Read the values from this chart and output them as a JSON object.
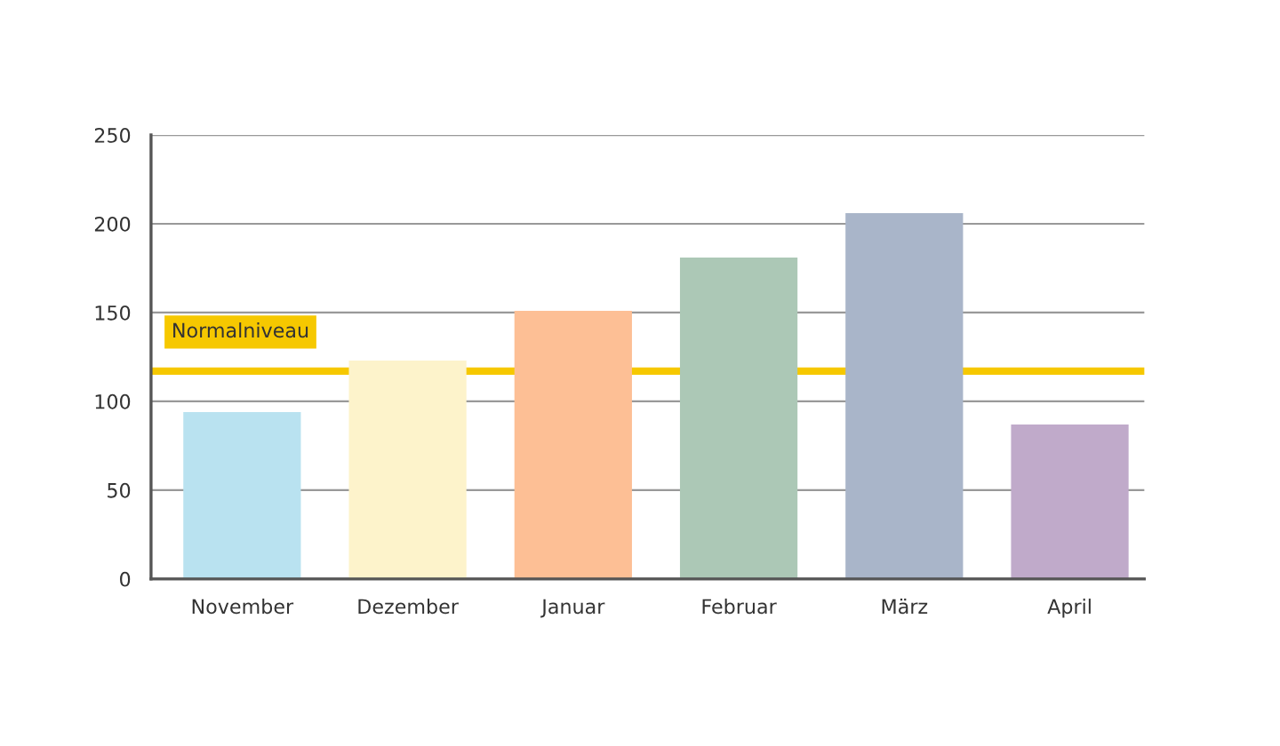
{
  "chart_data": {
    "type": "bar",
    "categories": [
      "November",
      "Dezember",
      "Januar",
      "Februar",
      "März",
      "April"
    ],
    "values": [
      94,
      123,
      151,
      181,
      206,
      87
    ],
    "colors": [
      "#b9e2f0",
      "#fdf3cb",
      "#fdbf95",
      "#acc8b6",
      "#a9b5c9",
      "#c0aaca"
    ],
    "ylim": [
      0,
      250
    ],
    "yticks": [
      0,
      50,
      100,
      150,
      200,
      250
    ],
    "grid": "y",
    "legend": false,
    "ref_lines": [
      {
        "axis": "y",
        "value": 117,
        "label": "Normalniveau",
        "color": "#f6c800",
        "line_style": "solid"
      }
    ]
  }
}
